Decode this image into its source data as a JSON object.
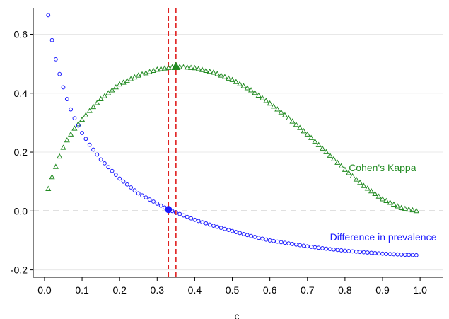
{
  "chart_data": {
    "type": "scatter",
    "title": "",
    "xlabel": "c",
    "ylabel": "",
    "xlim": [
      -0.03,
      1.06
    ],
    "ylim": [
      -0.225,
      0.69
    ],
    "xticks": [
      "0.0",
      "0.1",
      "0.2",
      "0.3",
      "0.4",
      "0.5",
      "0.6",
      "0.7",
      "0.8",
      "0.9",
      "1.0"
    ],
    "yticks": [
      "-0.2",
      "0.0",
      "0.2",
      "0.4",
      "0.6"
    ],
    "grid": true,
    "reference_line_y": 0,
    "vertical_markers": [
      0.33,
      0.35
    ],
    "colors": {
      "kappa": "#228b22",
      "prevalence": "#1a1aff",
      "marker_lines": "#e02020",
      "grid": "#e8e8e8",
      "zero_line": "#c0c0c0"
    },
    "series": [
      {
        "name": "Cohen's Kappa",
        "marker": "triangle",
        "color": "#228b22",
        "x_start": 0.01,
        "x_end": 0.99,
        "x_step": 0.01,
        "anchors": [
          [
            0.01,
            0.075
          ],
          [
            0.02,
            0.115
          ],
          [
            0.03,
            0.15
          ],
          [
            0.04,
            0.185
          ],
          [
            0.05,
            0.215
          ],
          [
            0.06,
            0.24
          ],
          [
            0.08,
            0.28
          ],
          [
            0.1,
            0.31
          ],
          [
            0.12,
            0.34
          ],
          [
            0.15,
            0.38
          ],
          [
            0.2,
            0.43
          ],
          [
            0.25,
            0.46
          ],
          [
            0.3,
            0.48
          ],
          [
            0.35,
            0.49
          ],
          [
            0.4,
            0.485
          ],
          [
            0.45,
            0.47
          ],
          [
            0.5,
            0.445
          ],
          [
            0.55,
            0.41
          ],
          [
            0.6,
            0.365
          ],
          [
            0.65,
            0.315
          ],
          [
            0.7,
            0.26
          ],
          [
            0.75,
            0.2
          ],
          [
            0.8,
            0.14
          ],
          [
            0.85,
            0.085
          ],
          [
            0.9,
            0.04
          ],
          [
            0.95,
            0.01
          ],
          [
            0.99,
            0.0
          ]
        ],
        "highlight": {
          "x": 0.35,
          "y": 0.49
        },
        "label": "Cohen's Kappa",
        "label_at": [
          0.81,
          0.135
        ]
      },
      {
        "name": "Difference in prevalence",
        "marker": "circle",
        "color": "#1a1aff",
        "x_start": 0.01,
        "x_end": 0.99,
        "x_step": 0.01,
        "anchors": [
          [
            0.01,
            0.665
          ],
          [
            0.02,
            0.58
          ],
          [
            0.03,
            0.515
          ],
          [
            0.04,
            0.465
          ],
          [
            0.05,
            0.42
          ],
          [
            0.06,
            0.38
          ],
          [
            0.07,
            0.345
          ],
          [
            0.08,
            0.315
          ],
          [
            0.09,
            0.29
          ],
          [
            0.1,
            0.265
          ],
          [
            0.12,
            0.225
          ],
          [
            0.15,
            0.175
          ],
          [
            0.2,
            0.11
          ],
          [
            0.25,
            0.06
          ],
          [
            0.3,
            0.025
          ],
          [
            0.33,
            0.005
          ],
          [
            0.35,
            -0.005
          ],
          [
            0.4,
            -0.03
          ],
          [
            0.45,
            -0.05
          ],
          [
            0.5,
            -0.068
          ],
          [
            0.55,
            -0.085
          ],
          [
            0.6,
            -0.1
          ],
          [
            0.65,
            -0.11
          ],
          [
            0.7,
            -0.12
          ],
          [
            0.75,
            -0.128
          ],
          [
            0.8,
            -0.135
          ],
          [
            0.85,
            -0.14
          ],
          [
            0.9,
            -0.145
          ],
          [
            0.95,
            -0.148
          ],
          [
            0.99,
            -0.15
          ]
        ],
        "highlight": {
          "x": 0.33,
          "y": 0.005
        },
        "label": "Difference in prevalence",
        "label_at": [
          0.76,
          -0.1
        ]
      }
    ]
  }
}
